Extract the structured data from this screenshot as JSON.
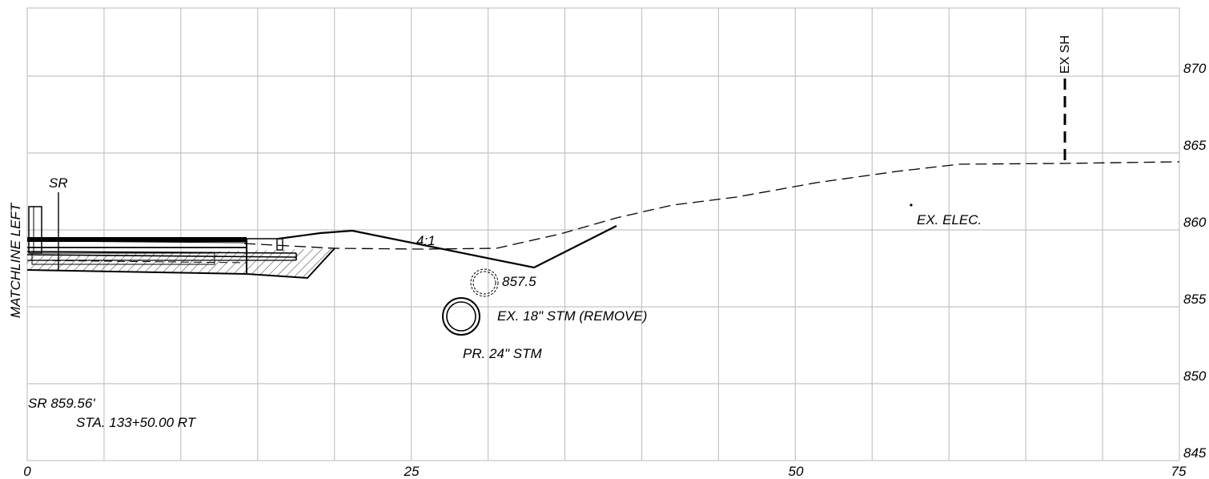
{
  "sheet": {
    "matchline": "MATCHLINE LEFT",
    "x_ticks": [
      "0",
      "25",
      "50",
      "75"
    ],
    "y_ticks": [
      "870",
      "865",
      "860",
      "855",
      "850",
      "845"
    ]
  },
  "labels": {
    "slope": "4:1",
    "elevation_point": "857.5",
    "sr": "SR",
    "ex_electric": "EX. ELEC.",
    "ex_storm": "EX. 18\" STM (REMOVE)",
    "pr_storm": "PR. 24\" STM",
    "ex_sanitary": "EX SH",
    "sr_elevation": "SR 859.56'",
    "station": "STA. 133+50.00 RT"
  }
}
